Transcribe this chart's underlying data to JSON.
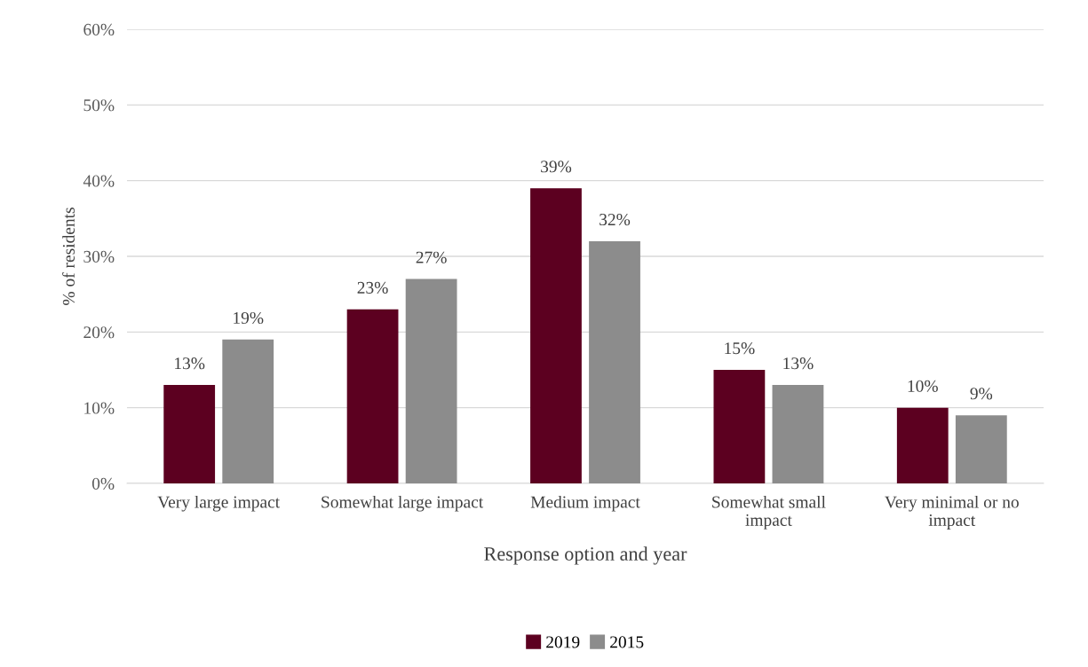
{
  "chart_data": {
    "type": "bar",
    "xlabel": "Response option and year",
    "ylabel": "% of residents",
    "categories": [
      "Very large impact",
      "Somewhat large impact",
      "Medium impact",
      "Somewhat small\nimpact",
      "Very minimal or no\nimpact"
    ],
    "series": [
      {
        "name": "2019",
        "color": "#5c0020",
        "values": [
          13,
          23,
          39,
          15,
          10
        ],
        "value_labels": [
          "13%",
          "23%",
          "39%",
          "15%",
          "10%"
        ]
      },
      {
        "name": "2015",
        "color": "#8c8c8c",
        "values": [
          19,
          27,
          32,
          13,
          9
        ],
        "value_labels": [
          "19%",
          "27%",
          "32%",
          "13%",
          "9%"
        ]
      }
    ],
    "ylim": [
      0,
      60
    ],
    "yticks": [
      {
        "value": 0,
        "label": "0%"
      },
      {
        "value": 10,
        "label": "10%"
      },
      {
        "value": 20,
        "label": "20%"
      },
      {
        "value": 30,
        "label": "30%"
      },
      {
        "value": 40,
        "label": "40%"
      },
      {
        "value": 50,
        "label": "50%"
      },
      {
        "value": 60,
        "label": "60%"
      }
    ],
    "grid": "y",
    "legend": "bottom"
  }
}
